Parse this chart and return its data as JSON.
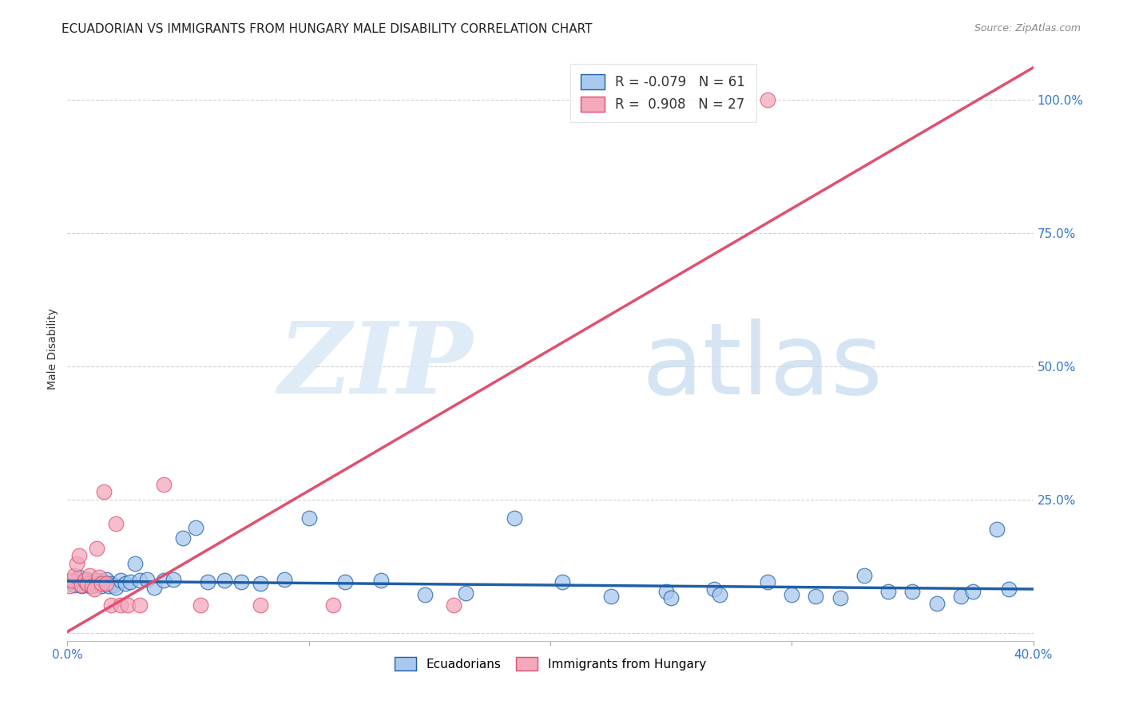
{
  "title": "ECUADORIAN VS IMMIGRANTS FROM HUNGARY MALE DISABILITY CORRELATION CHART",
  "source": "Source: ZipAtlas.com",
  "ylabel": "Male Disability",
  "xlim": [
    0.0,
    0.4
  ],
  "ylim": [
    -0.015,
    1.08
  ],
  "blue_color": "#A8C8EE",
  "pink_color": "#F4A8BC",
  "blue_line_color": "#1F5FA6",
  "pink_line_color": "#E05070",
  "grid_color": "#CCCCCC",
  "blue_scatter_x": [
    0.002,
    0.003,
    0.004,
    0.005,
    0.005,
    0.006,
    0.007,
    0.008,
    0.008,
    0.009,
    0.01,
    0.011,
    0.012,
    0.013,
    0.014,
    0.015,
    0.016,
    0.017,
    0.018,
    0.019,
    0.02,
    0.022,
    0.024,
    0.026,
    0.028,
    0.03,
    0.033,
    0.036,
    0.04,
    0.044,
    0.048,
    0.053,
    0.058,
    0.065,
    0.072,
    0.08,
    0.09,
    0.1,
    0.115,
    0.13,
    0.148,
    0.165,
    0.185,
    0.205,
    0.225,
    0.248,
    0.268,
    0.29,
    0.31,
    0.33,
    0.35,
    0.37,
    0.39,
    0.25,
    0.27,
    0.3,
    0.32,
    0.34,
    0.36,
    0.375,
    0.385
  ],
  "blue_scatter_y": [
    0.095,
    0.09,
    0.1,
    0.092,
    0.105,
    0.088,
    0.095,
    0.092,
    0.1,
    0.088,
    0.095,
    0.09,
    0.098,
    0.092,
    0.088,
    0.095,
    0.1,
    0.088,
    0.092,
    0.09,
    0.085,
    0.098,
    0.092,
    0.095,
    0.13,
    0.098,
    0.1,
    0.085,
    0.098,
    0.1,
    0.178,
    0.198,
    0.095,
    0.098,
    0.095,
    0.092,
    0.1,
    0.215,
    0.095,
    0.098,
    0.072,
    0.075,
    0.215,
    0.095,
    0.068,
    0.078,
    0.082,
    0.095,
    0.068,
    0.108,
    0.078,
    0.068,
    0.082,
    0.065,
    0.072,
    0.072,
    0.065,
    0.078,
    0.055,
    0.078,
    0.195
  ],
  "pink_scatter_x": [
    0.001,
    0.002,
    0.003,
    0.004,
    0.005,
    0.006,
    0.007,
    0.008,
    0.009,
    0.01,
    0.011,
    0.012,
    0.013,
    0.014,
    0.015,
    0.016,
    0.018,
    0.02,
    0.022,
    0.025,
    0.03,
    0.04,
    0.055,
    0.08,
    0.11,
    0.16,
    0.29
  ],
  "pink_scatter_y": [
    0.088,
    0.098,
    0.108,
    0.13,
    0.145,
    0.09,
    0.098,
    0.092,
    0.108,
    0.088,
    0.082,
    0.158,
    0.105,
    0.092,
    0.265,
    0.092,
    0.052,
    0.205,
    0.052,
    0.052,
    0.052,
    0.278,
    0.052,
    0.052,
    0.052,
    0.052,
    1.0
  ],
  "blue_line_x": [
    0.0,
    0.4
  ],
  "blue_line_y": [
    0.097,
    0.082
  ],
  "pink_line_x": [
    0.0,
    0.4
  ],
  "pink_line_y": [
    0.002,
    1.06
  ]
}
